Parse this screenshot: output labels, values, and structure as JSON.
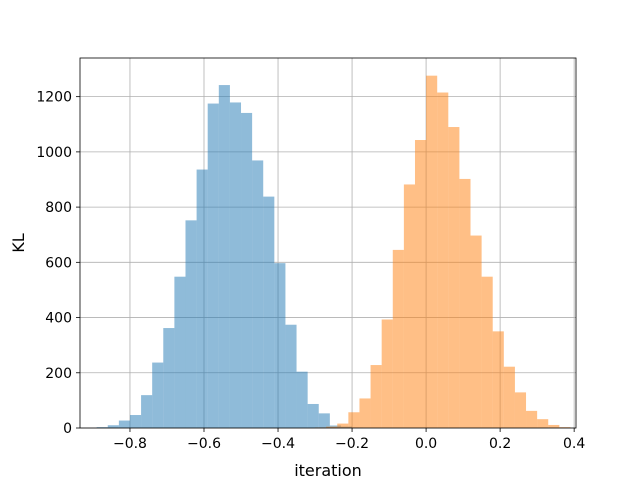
{
  "chart_data": {
    "type": "histogram",
    "title": "",
    "xlabel": "iteration",
    "ylabel": "KL",
    "xlim": [
      -0.935,
      0.405
    ],
    "ylim": [
      0,
      1340
    ],
    "grid": true,
    "legend": "none",
    "xticks": [
      -0.8,
      -0.6,
      -0.4,
      -0.2,
      0.0,
      0.2,
      0.4
    ],
    "xtick_labels": [
      "−0.8",
      "−0.6",
      "−0.4",
      "−0.2",
      "0.0",
      "0.2",
      "0.4"
    ],
    "yticks": [
      0,
      200,
      400,
      600,
      800,
      1000,
      1200
    ],
    "ytick_labels": [
      "0",
      "200",
      "400",
      "600",
      "800",
      "1000",
      "1200"
    ],
    "series": [
      {
        "color": "#1f77b4",
        "alpha": 0.5,
        "bin_start": -0.89,
        "bin_width": 0.03,
        "values": [
          3,
          10,
          27,
          47,
          119,
          237,
          362,
          548,
          752,
          936,
          1175,
          1242,
          1179,
          1141,
          969,
          838,
          597,
          374,
          204,
          87,
          53,
          9,
          5,
          1
        ]
      },
      {
        "color": "#ff7f0e",
        "alpha": 0.5,
        "bin_start": -0.3,
        "bin_width": 0.03,
        "values": [
          2,
          5,
          16,
          57,
          107,
          228,
          393,
          645,
          882,
          1043,
          1276,
          1215,
          1090,
          902,
          697,
          548,
          350,
          222,
          129,
          62,
          32,
          11,
          3
        ]
      }
    ]
  }
}
